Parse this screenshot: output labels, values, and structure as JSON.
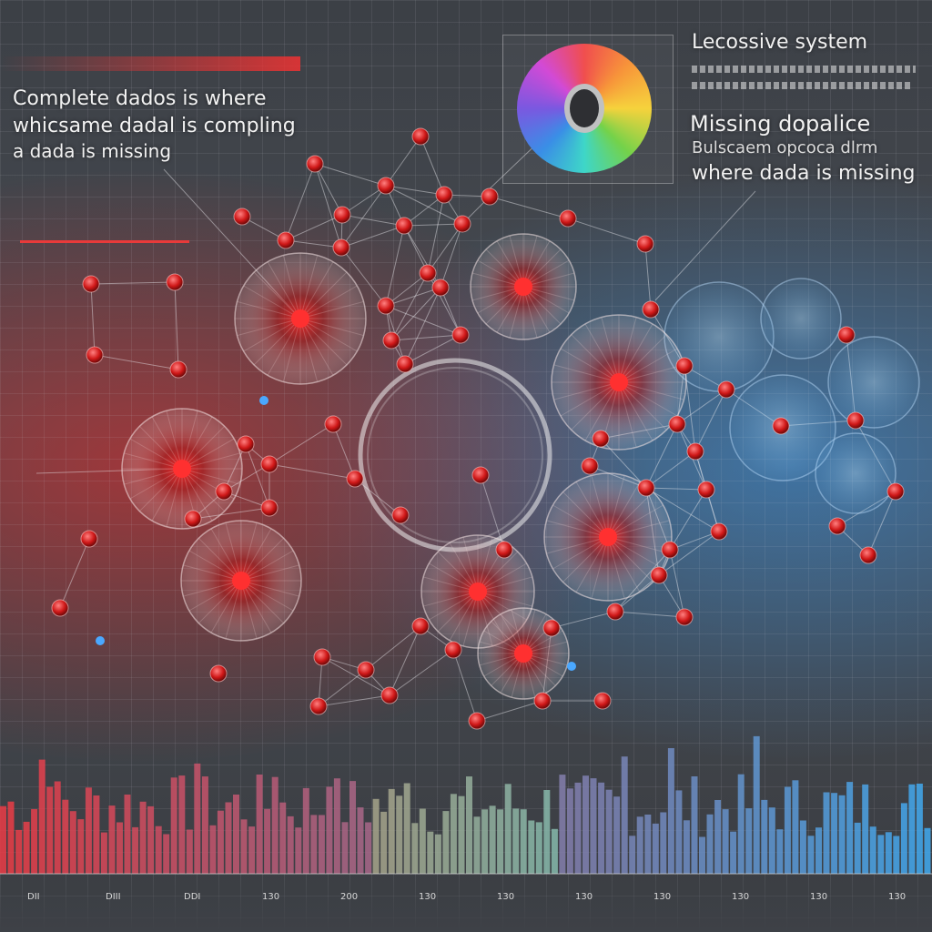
{
  "top_left": {
    "line1": "Complete dados is   where",
    "line2": "whicsame dadal is compling",
    "line3": "a dada is missing"
  },
  "top_right": {
    "title": "Lecossive system",
    "heading": "Missing dopalice",
    "subheading": "Bulscaem opcoca dlrm",
    "line3": "where  dada is missing"
  },
  "colors": {
    "left_accent": "#e83a3a",
    "right_accent": "#3c96e6",
    "node": "#d91c1c"
  },
  "axis_ticks": [
    "DII",
    "DIII",
    "DDI",
    "130",
    "200",
    "130",
    "130",
    "130",
    "130",
    "130",
    "130",
    "130"
  ]
}
